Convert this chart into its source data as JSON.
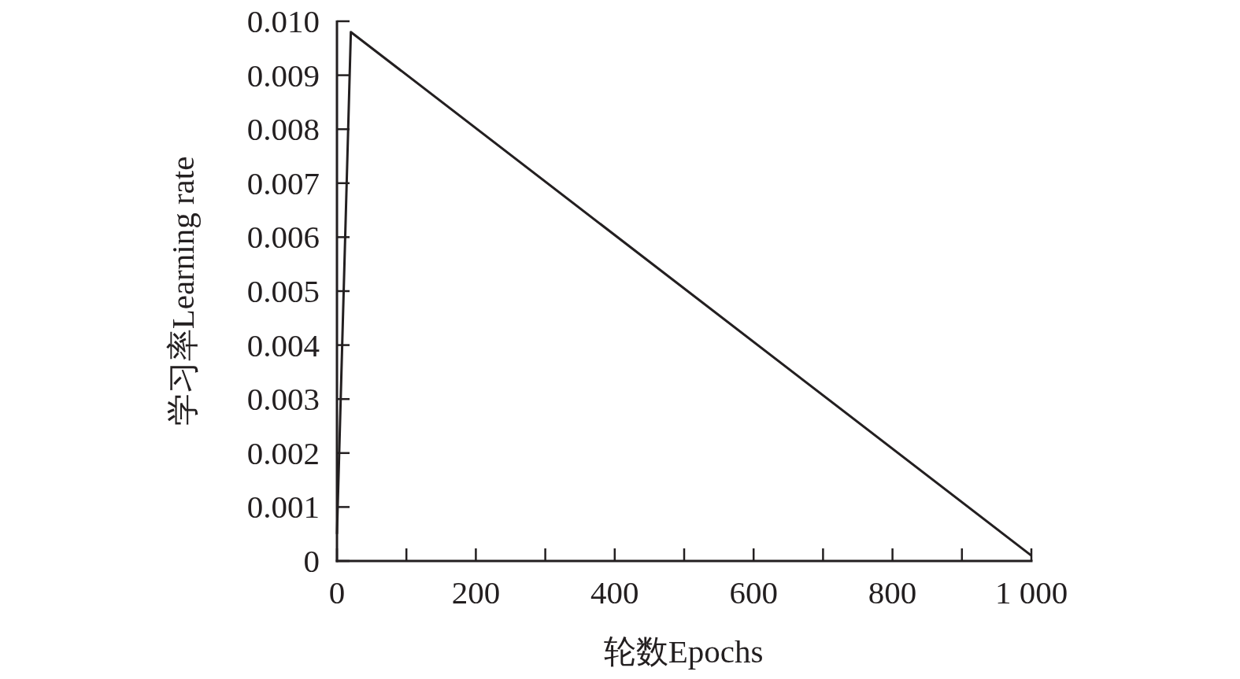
{
  "chart_data": {
    "type": "line",
    "xlabel": "轮数Epochs",
    "ylabel": "学习率Learning rate",
    "x": [
      0,
      20,
      1000
    ],
    "series": [
      {
        "color": "#231f20",
        "values": [
          0.0005,
          0.0098,
          0.0001
        ]
      }
    ],
    "xlim": [
      0,
      1000
    ],
    "xticks": [
      0,
      {
        "value": 100,
        "label": null
      },
      200,
      {
        "value": 300,
        "label": null
      },
      400,
      {
        "value": 500,
        "label": null
      },
      600,
      {
        "value": 700,
        "label": null
      },
      800,
      {
        "value": 900,
        "label": null
      },
      {
        "value": 1000,
        "label": "1 000"
      }
    ],
    "ylim": [
      0,
      0.01
    ],
    "yticks": [
      0,
      0.001,
      0.002,
      0.003,
      0.004,
      0.005,
      0.006,
      0.007,
      0.008,
      0.009,
      {
        "value": 0.01,
        "label": "0.010"
      }
    ],
    "grid": false,
    "marker": "none",
    "line_style": "solid"
  }
}
